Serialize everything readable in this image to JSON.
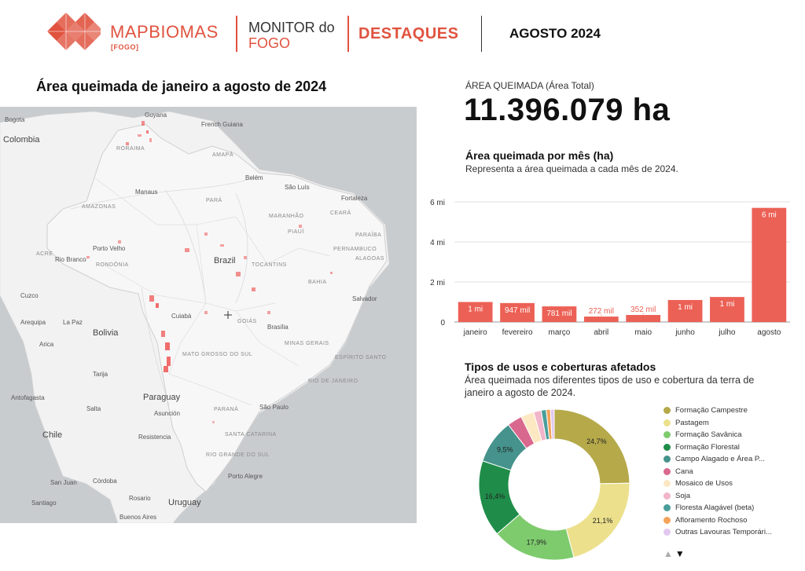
{
  "header": {
    "logo_light": "MAP",
    "logo_bold": "BIOMAS",
    "logo_sub": "[FOGO]",
    "monitor_line1": "MONITOR do",
    "monitor_line2": "FOGO",
    "section": "DESTAQUES",
    "period": "AGOSTO 2024"
  },
  "map": {
    "title": "Área queimada de janeiro a agosto de 2024",
    "labels": {
      "bogota": "Bogota",
      "colombia": "Colombia",
      "guyana": "Guyana",
      "french_guiana": "French Guiana",
      "roraima": "RORAIMA",
      "amapa": "AMAPÁ",
      "belem": "Belém",
      "sao_luis": "São Luís",
      "fortaleza": "Fortaleza",
      "manaus": "Manaus",
      "amazonas": "AMAZONAS",
      "para": "PARÁ",
      "maranhao": "MARANHÃO",
      "ceara": "CEARÁ",
      "paraiba": "PARAÍBA",
      "pernambuco": "PERNAMBUCO",
      "alagoas": "ALAGOAS",
      "acre": "ACRE",
      "rio_branco": "Rio Branco",
      "porto_velho": "Porto Velho",
      "rondonia": "RONDÔNIA",
      "brazil": "Brazil",
      "tocantins": "TOCANTINS",
      "bahia": "BAHIA",
      "piaui": "PIAUÍ",
      "salvador": "Salvador",
      "cuzco": "Cuzco",
      "arequipa": "Arequipa",
      "la_paz": "La Paz",
      "bolivia": "Bolivia",
      "arica": "Arica",
      "cuiaba": "Cuiabá",
      "goias": "GOIÁS",
      "brasilia": "Brasília",
      "minas": "MINAS GERAIS",
      "mato_grosso_sul": "MATO GROSSO DO SUL",
      "espirito_santo": "ESPÍRITO SANTO",
      "rio": "RIO DE JANEIRO",
      "sao_paulo": "São Paulo",
      "parana": "PARANÁ",
      "tarija": "Tarija",
      "antofagasta": "Antofagasta",
      "paraguay": "Paraguay",
      "asuncion": "Asunción",
      "salta": "Salta",
      "chile": "Chile",
      "resistencia": "Resistencia",
      "santa_catarina": "SANTA CATARINA",
      "rio_grande_sul": "RIO GRANDE DO SUL",
      "san_juan": "San Juan",
      "cordoba": "Córdoba",
      "rosario": "Rosario",
      "santiago": "Santiago",
      "uruguay": "Uruguay",
      "buenos_aires": "Buenos Aires",
      "porto_alegre": "Porto Alegre"
    }
  },
  "kpi": {
    "label": "ÁREA QUEIMADA (Área Total)",
    "value": "11.396.079 ha"
  },
  "bar": {
    "title": "Área queimada por mês (ha)",
    "subtitle": "Representa a área queimada a cada mês de 2024."
  },
  "donut": {
    "title": "Tipos de usos e coberturas afetados",
    "subtitle": "Área queimada nos diferentes tipos de uso e cobertura da terra de janeiro a agosto de 2024."
  },
  "legend_nav": {
    "up": "▲",
    "down": "▼"
  },
  "colors": {
    "accent": "#e0533f",
    "bar": "#ec6156",
    "map_land": "#f2f2f2",
    "map_bg": "#c9cccf",
    "fire": "#ef4a4a"
  },
  "chart_data": [
    {
      "type": "bar",
      "categories": [
        "janeiro",
        "fevereiro",
        "março",
        "abril",
        "maio",
        "junho",
        "julho",
        "agosto"
      ],
      "values": [
        1000000,
        947000,
        781000,
        272000,
        352000,
        1100000,
        1250000,
        5700000
      ],
      "data_labels": [
        "1 mi",
        "947 mil",
        "781 mil",
        "272 mil",
        "352 mil",
        "1 mi",
        "1 mi",
        "6 mi"
      ],
      "y_ticks": [
        "0",
        "2 mi",
        "4 mi",
        "6 mi"
      ],
      "y_tick_values": [
        0,
        2000000,
        4000000,
        6000000
      ],
      "ylim": [
        0,
        6000000
      ],
      "grid": true
    },
    {
      "type": "pie",
      "donut": true,
      "series": [
        {
          "name": "Formação Campestre",
          "value": 24.7,
          "label": "24,7%",
          "color": "#b5a94a"
        },
        {
          "name": "Pastagem",
          "value": 21.1,
          "label": "21,1%",
          "color": "#ece08c"
        },
        {
          "name": "Formação Savânica",
          "value": 17.9,
          "label": "17,9%",
          "color": "#7ecb6e"
        },
        {
          "name": "Formação Florestal",
          "value": 16.4,
          "label": "16,4%",
          "color": "#1f8d49"
        },
        {
          "name": "Campo Alagado e Área P...",
          "value": 9.5,
          "label": "9,5%",
          "color": "#45938c"
        },
        {
          "name": "Cana",
          "value": 3.2,
          "label": "",
          "color": "#d9688f"
        },
        {
          "name": "Mosaico de Usos",
          "value": 2.8,
          "label": "",
          "color": "#fde8c4"
        },
        {
          "name": "Soja",
          "value": 1.6,
          "label": "",
          "color": "#f2b5c9"
        },
        {
          "name": "Floresta Alagável (beta)",
          "value": 1.1,
          "label": "",
          "color": "#4a9e9a"
        },
        {
          "name": "Afloramento Rochoso",
          "value": 0.9,
          "label": "",
          "color": "#f6a35a"
        },
        {
          "name": "Outras Lavouras Temporári...",
          "value": 0.8,
          "label": "",
          "color": "#e2c8f0"
        }
      ]
    }
  ]
}
